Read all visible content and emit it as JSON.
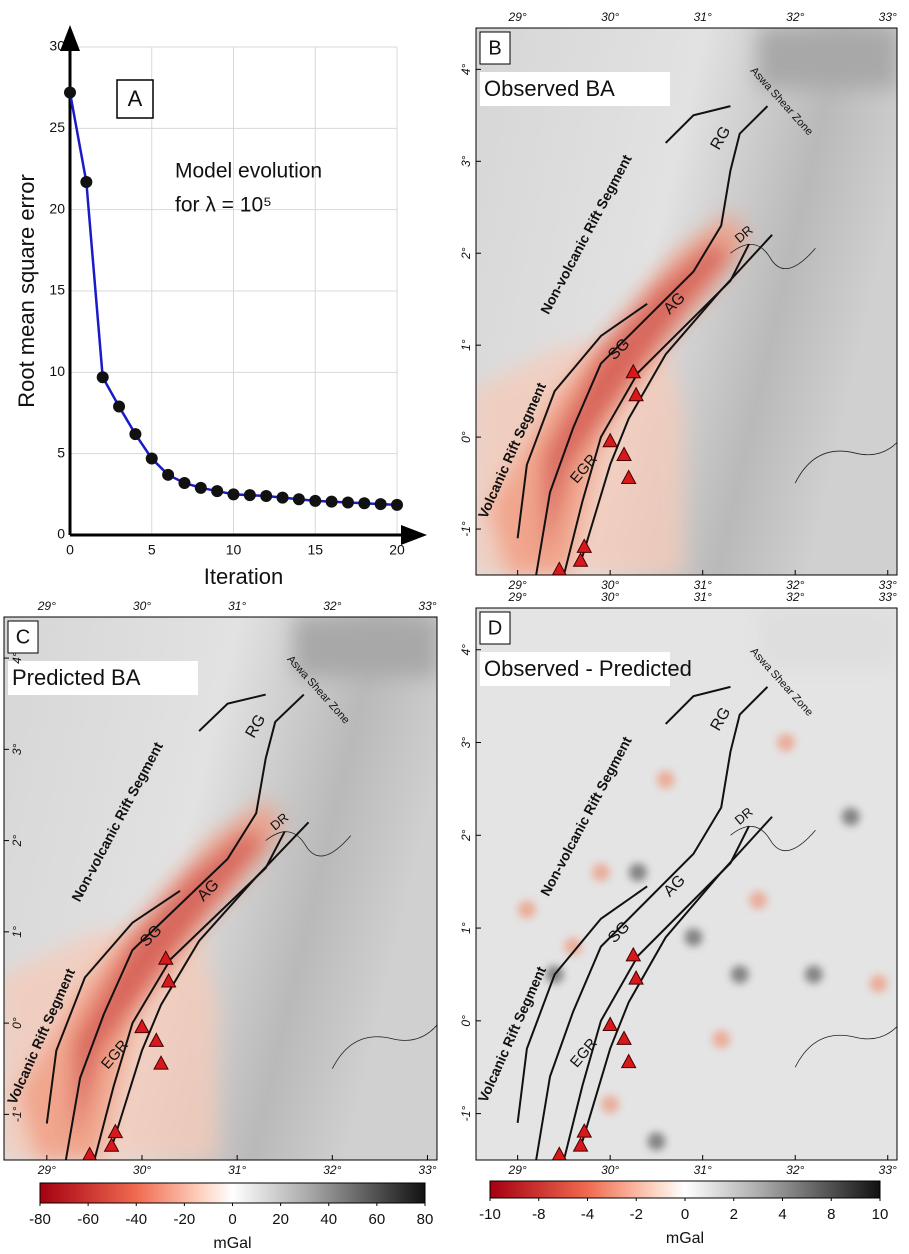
{
  "chart_data": {
    "type": "line",
    "panel_label": "A",
    "annotation": [
      "Model evolution",
      "for λ = 10⁵"
    ],
    "x_label": "Iteration",
    "y_label": "Root mean square error",
    "x": [
      0,
      1,
      2,
      3,
      4,
      5,
      6,
      7,
      8,
      9,
      10,
      11,
      12,
      13,
      14,
      15,
      16,
      17,
      18,
      19,
      20
    ],
    "series": [
      {
        "color": "#1a1ac8",
        "values": [
          27.2,
          21.7,
          9.7,
          7.9,
          6.2,
          4.7,
          3.7,
          3.2,
          2.9,
          2.7,
          2.5,
          2.45,
          2.4,
          2.3,
          2.2,
          2.1,
          2.05,
          2.0,
          1.95,
          1.9,
          1.85
        ]
      }
    ],
    "marker_color": "#111111",
    "xlim": [
      0,
      20
    ],
    "ylim": [
      0,
      30
    ],
    "xticks": [
      0,
      5,
      10,
      15,
      20
    ],
    "yticks": [
      0,
      5,
      10,
      15,
      20,
      25,
      30
    ],
    "grid": true
  },
  "maps": [
    {
      "label": "B",
      "title": "Observed BA",
      "residual": false,
      "annotations": [
        "Aswa Shear Zone",
        "Non-volcanic Rift Segment",
        "Volcanic Rift Segment",
        "RG",
        "DR",
        "AG",
        "SG",
        "EGR"
      ],
      "xlim": [
        28.55,
        33.1
      ],
      "ylim": [
        -1.5,
        4.45
      ],
      "xticks": [
        {
          "value": 29,
          "label": "29°"
        },
        {
          "value": 30,
          "label": "30°"
        },
        {
          "value": 31,
          "label": "31°"
        },
        {
          "value": 32,
          "label": "32°"
        },
        {
          "value": 33,
          "label": "33°"
        }
      ],
      "yticks": [
        {
          "value": -1,
          "label": "-1°"
        },
        {
          "value": 0,
          "label": "0°"
        },
        {
          "value": 1,
          "label": "1°"
        },
        {
          "value": 2,
          "label": "2°"
        },
        {
          "value": 3,
          "label": "3°"
        },
        {
          "value": 4,
          "label": "4°"
        }
      ]
    },
    {
      "label": "C",
      "title": "Predicted BA",
      "residual": false,
      "annotations": [
        "Aswa Shear Zone",
        "Non-volcanic Rift Segment",
        "Volcanic Rift Segment",
        "RG",
        "DR",
        "AG",
        "SG",
        "EGR"
      ],
      "xlim": [
        28.55,
        33.1
      ],
      "ylim": [
        -1.5,
        4.45
      ],
      "xticks": [
        {
          "value": 29,
          "label": "29°"
        },
        {
          "value": 30,
          "label": "30°"
        },
        {
          "value": 31,
          "label": "31°"
        },
        {
          "value": 32,
          "label": "32°"
        },
        {
          "value": 33,
          "label": "33°"
        }
      ],
      "yticks": [
        {
          "value": -1,
          "label": "-1°"
        },
        {
          "value": 0,
          "label": "0°"
        },
        {
          "value": 1,
          "label": "1°"
        },
        {
          "value": 2,
          "label": "2°"
        },
        {
          "value": 3,
          "label": "3°"
        },
        {
          "value": 4,
          "label": "4°"
        }
      ]
    },
    {
      "label": "D",
      "title": "Observed - Predicted",
      "residual": true,
      "annotations": [
        "Aswa Shear Zone",
        "Non-volcanic Rift Segment",
        "Volcanic Rift Segment",
        "RG",
        "DR",
        "AG",
        "SG",
        "EGR"
      ],
      "xlim": [
        28.55,
        33.1
      ],
      "ylim": [
        -1.5,
        4.45
      ],
      "xticks": [
        {
          "value": 29,
          "label": "29°"
        },
        {
          "value": 30,
          "label": "30°"
        },
        {
          "value": 31,
          "label": "31°"
        },
        {
          "value": 32,
          "label": "32°"
        },
        {
          "value": 33,
          "label": "33°"
        }
      ],
      "yticks": [
        {
          "value": -1,
          "label": "-1°"
        },
        {
          "value": 0,
          "label": "0°"
        },
        {
          "value": 1,
          "label": "1°"
        },
        {
          "value": 2,
          "label": "2°"
        },
        {
          "value": 3,
          "label": "3°"
        },
        {
          "value": 4,
          "label": "4°"
        }
      ]
    }
  ],
  "colorbars": [
    {
      "unit": "mGal",
      "ticks": [
        -80,
        -60,
        -40,
        -20,
        0,
        20,
        40,
        60,
        80
      ]
    },
    {
      "unit": "mGal",
      "ticks": [
        -10,
        -8,
        -4,
        -2,
        0,
        2,
        4,
        8,
        10
      ]
    }
  ]
}
